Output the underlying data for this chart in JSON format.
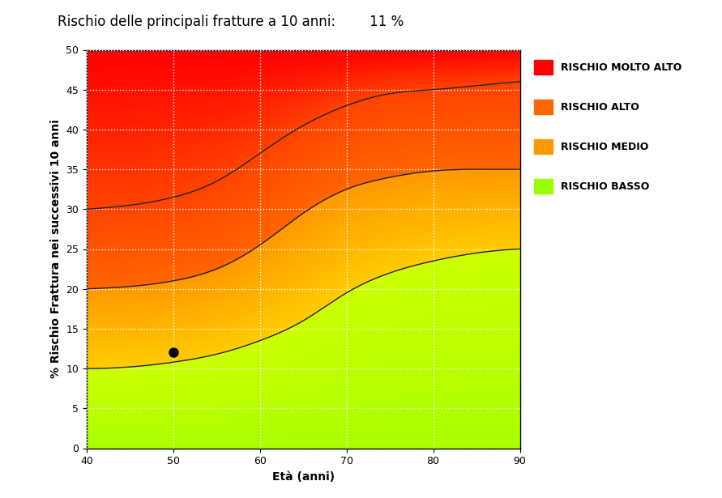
{
  "title": "Rischio delle principali fratture a 10 anni:",
  "title_value": "11 %",
  "xlabel": "Età (anni)",
  "ylabel": "% Rischio Frattura nei successivi 10 anni",
  "xlim": [
    40,
    90
  ],
  "ylim": [
    0,
    50
  ],
  "xticks": [
    40,
    50,
    60,
    70,
    80,
    90
  ],
  "yticks": [
    0,
    5,
    10,
    15,
    20,
    25,
    30,
    35,
    40,
    45,
    50
  ],
  "curve1_x": [
    40,
    45,
    50,
    55,
    60,
    65,
    70,
    75,
    80,
    85,
    90
  ],
  "curve1_y": [
    10.0,
    10.2,
    10.8,
    11.8,
    13.5,
    16.0,
    19.5,
    22.0,
    23.5,
    24.5,
    25.0
  ],
  "curve2_x": [
    40,
    45,
    50,
    55,
    60,
    65,
    70,
    75,
    80,
    85,
    90
  ],
  "curve2_y": [
    20.0,
    20.3,
    21.0,
    22.5,
    25.5,
    29.5,
    32.5,
    34.0,
    34.8,
    35.0,
    35.0
  ],
  "curve3_x": [
    40,
    45,
    50,
    55,
    60,
    65,
    70,
    75,
    80,
    85,
    90
  ],
  "curve3_y": [
    30.0,
    30.5,
    31.5,
    33.5,
    37.0,
    40.5,
    43.0,
    44.5,
    45.0,
    45.5,
    46.0
  ],
  "dot_x": 50,
  "dot_y": 12.0,
  "color_molto_alto": "#ff0000",
  "color_alto": "#ff6600",
  "color_medio": "#ff9900",
  "color_basso": "#99ff00",
  "legend_labels": [
    "RISCHIO MOLTO ALTO",
    "RISCHIO ALTO",
    "RISCHIO MEDIO",
    "RISCHIO BASSO"
  ],
  "legend_colors": [
    "#ff0000",
    "#ff6600",
    "#ff9900",
    "#99ff00"
  ],
  "bg_color": "#ffffff",
  "title_fontsize": 12,
  "axis_fontsize": 10,
  "tick_fontsize": 9,
  "legend_fontsize": 9
}
